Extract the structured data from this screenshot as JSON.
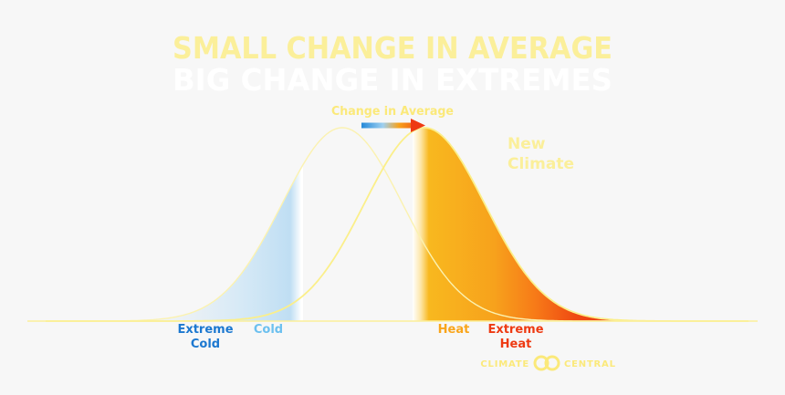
{
  "title": {
    "line1": "SMALL CHANGE IN AVERAGE",
    "line2": "BIG CHANGE IN EXTREMES"
  },
  "arrow_label": "Change in Average",
  "new_climate_label": {
    "line1": "New",
    "line2": "Climate"
  },
  "zones": {
    "extreme_cold": {
      "line1": "Extreme",
      "line2": "Cold"
    },
    "cold": "Cold",
    "heat": "Heat",
    "extreme_heat": {
      "line1": "Extreme",
      "line2": "Heat"
    }
  },
  "logo": {
    "left_word": "CLIMATE",
    "right_word": "CENTRAL"
  },
  "colors": {
    "background": "#f7f7f7",
    "title_line1": "#fbef9a",
    "title_line2": "#ffffff",
    "curve_line": "#fbef8a",
    "extreme_cold": "#1c78d0",
    "cold": "#6cc0ef",
    "heat": "#f9a51a",
    "extreme_heat": "#ee3a12",
    "baseline": "#fbef9a"
  },
  "icons": [
    "arrow-right-icon",
    "climate-central-logo-icon"
  ]
}
